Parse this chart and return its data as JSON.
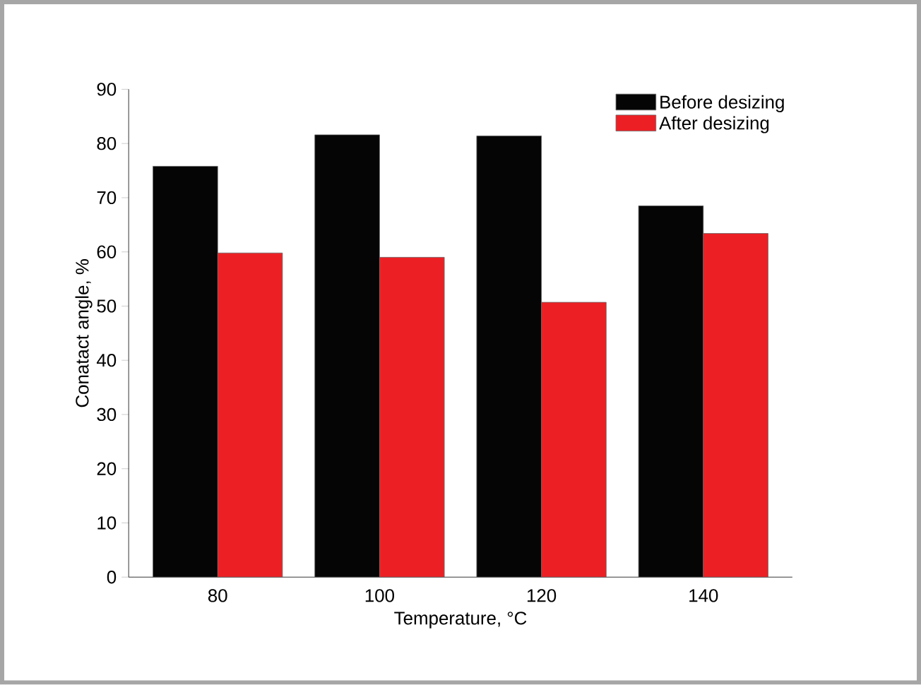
{
  "chart_data": {
    "type": "bar",
    "xlabel": "Temperature, °C",
    "ylabel": "Conatact angle, %",
    "categories": [
      "80",
      "100",
      "120",
      "140"
    ],
    "series": [
      {
        "name": "Before desizing",
        "color": "#050505",
        "values": [
          75.8,
          81.6,
          81.4,
          68.5
        ]
      },
      {
        "name": "After desizing",
        "color": "#ec2024",
        "values": [
          59.8,
          59.0,
          50.7,
          63.4
        ]
      }
    ],
    "ylim": [
      0,
      90
    ],
    "yticks": [
      0,
      10,
      20,
      30,
      40,
      50,
      60,
      70,
      80,
      90
    ],
    "legend": "top right",
    "grid": false
  }
}
